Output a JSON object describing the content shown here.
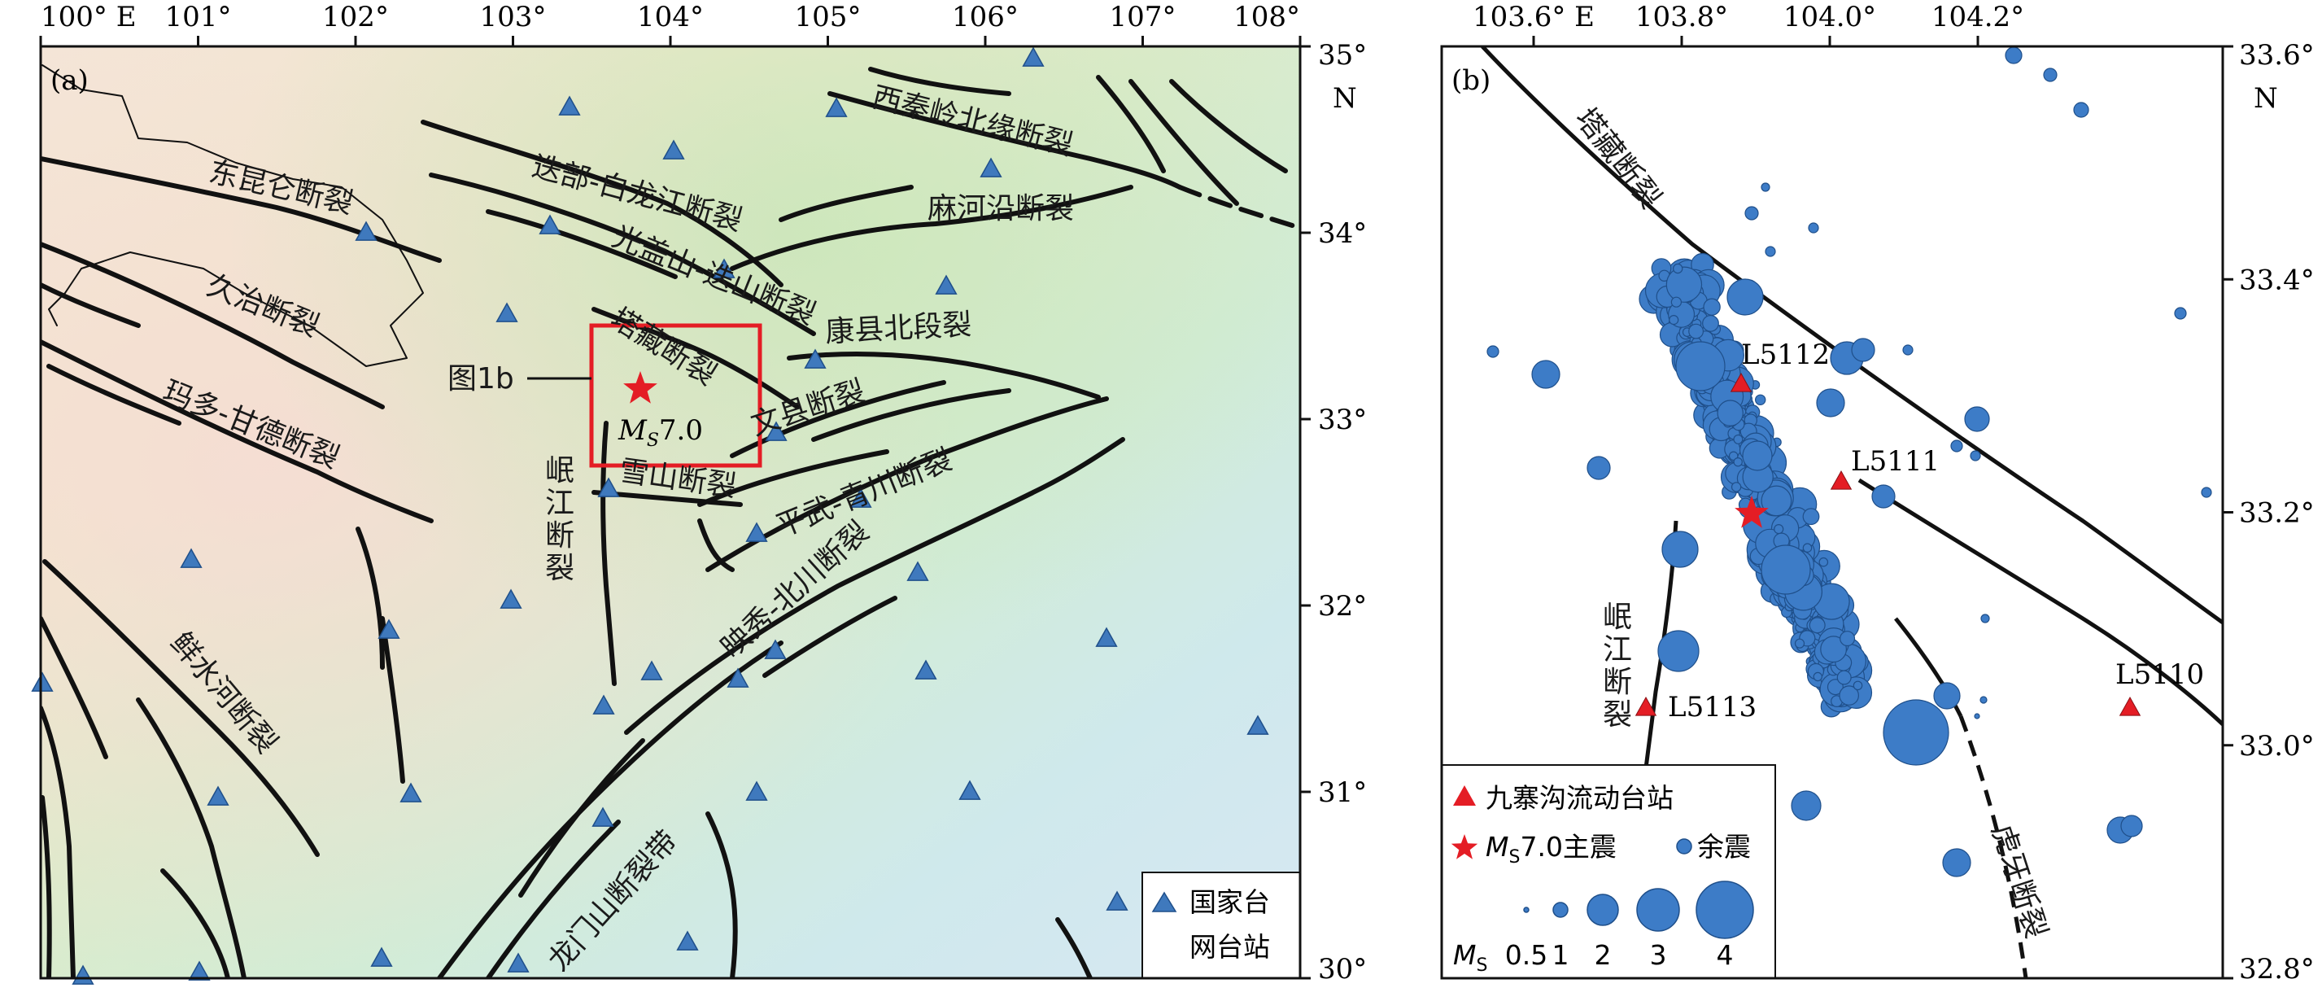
{
  "panel_a": {
    "label": "(a)",
    "lon_ticks": [
      "100° E",
      "101°",
      "102°",
      "103°",
      "104°",
      "105°",
      "106°",
      "107°",
      "108°"
    ],
    "lat_ticks": [
      "35°",
      "34°",
      "33°",
      "32°",
      "31°",
      "30°"
    ],
    "lat_unit": "N",
    "inset_label": "图1b",
    "mainshock": {
      "M": "M",
      "sub": "S",
      "val": "7.0"
    },
    "faults": [
      "东昆仑断裂",
      "迭部-白龙江断裂",
      "光盖山-迭山断裂",
      "西秦岭北缘断裂",
      "麻河沿断裂",
      "久治断裂",
      "塔藏断裂",
      "康县北段裂",
      "玛多-甘德断裂",
      "文县断裂",
      "雪山断裂",
      "平武-青川断裂",
      "映秀-北川断裂",
      "鲜水河断裂",
      "龙门山断裂带"
    ],
    "minjiang": [
      "岷",
      "江",
      "断",
      "裂"
    ],
    "legend": {
      "line1": "国家台",
      "line2": "网台站"
    }
  },
  "panel_b": {
    "label": "(b)",
    "lon_ticks": [
      "103.6° E",
      "103.8°",
      "104.0°",
      "104.2°"
    ],
    "lat_ticks": [
      "33.6°",
      "33.4°",
      "33.2°",
      "33.0°",
      "32.8°"
    ],
    "lat_unit": "N",
    "stations": [
      "L5112",
      "L5111",
      "L5113",
      "L5110"
    ],
    "faults": {
      "tazang": "塔藏断裂",
      "minjiang": [
        "岷",
        "江",
        "断",
        "裂"
      ],
      "huya": "虎牙断裂"
    },
    "legend": {
      "station_label": "九寨沟流动台站",
      "mainshock_label": "7.0主震",
      "aftershock_label": "余震",
      "ms_sym": "M",
      "ms_sub": "S",
      "ms_values": [
        "0.5",
        "1",
        "2",
        "3",
        "4"
      ]
    }
  },
  "colors": {
    "station": "#3f79bd",
    "event": "#3d7cc7",
    "red": "#e41d25",
    "fault": "#111111"
  }
}
